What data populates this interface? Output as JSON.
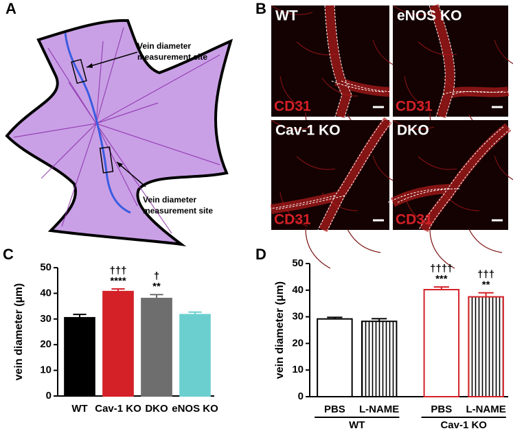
{
  "panel_labels": [
    "A",
    "B",
    "C",
    "D"
  ],
  "panel_a": {
    "callouts": [
      [
        "Vein diameter",
        "measurement site"
      ],
      [
        "Vein diameter",
        "measurement site"
      ]
    ]
  },
  "panel_b": {
    "images": [
      {
        "genotype": "WT",
        "stain": "CD31"
      },
      {
        "genotype": "eNOS KO",
        "stain": "CD31"
      },
      {
        "genotype": "Cav-1 KO",
        "stain": "CD31"
      },
      {
        "genotype": "DKO",
        "stain": "CD31"
      }
    ]
  },
  "chart_data": [
    {
      "type": "bar",
      "ylabel": "vein diameter (µm)",
      "categories": [
        "WT",
        "Cav-1 KO",
        "DKO",
        "eNOS KO"
      ],
      "values": [
        30.5,
        40.7,
        38.0,
        31.7
      ],
      "errors": [
        1.3,
        1.0,
        1.5,
        1.0
      ],
      "colors": [
        "#000000",
        "#d42027",
        "#6e6e6e",
        "#6ccfcf"
      ],
      "annotations": [
        null,
        [
          "†††",
          "****"
        ],
        [
          "†",
          "**"
        ],
        null
      ],
      "ylim": [
        0,
        50
      ],
      "yticks": [
        0,
        10,
        20,
        30,
        40,
        50
      ]
    },
    {
      "type": "bar",
      "ylabel": "vein diameter (μm)",
      "categories": [
        "PBS",
        "L-NAME",
        "PBS",
        "L-NAME"
      ],
      "groups": [
        {
          "name": "WT",
          "count": 2
        },
        {
          "name": "Cav-1 KO",
          "count": 2
        }
      ],
      "values": [
        29.2,
        28.3,
        40.2,
        37.5
      ],
      "errors": [
        0.6,
        1.0,
        1.0,
        1.5
      ],
      "colors": [
        "#ffffff",
        "#ffffff",
        "#ffffff",
        "#ffffff"
      ],
      "edge_colors": [
        "#000000",
        "#000000",
        "#d42027",
        "#d42027"
      ],
      "hatch": [
        false,
        true,
        false,
        true
      ],
      "annotations": [
        null,
        null,
        [
          "††††",
          "***"
        ],
        [
          "†††",
          "**"
        ]
      ],
      "ylim": [
        0,
        50
      ],
      "yticks": [
        0,
        10,
        20,
        30,
        40,
        50
      ]
    }
  ]
}
